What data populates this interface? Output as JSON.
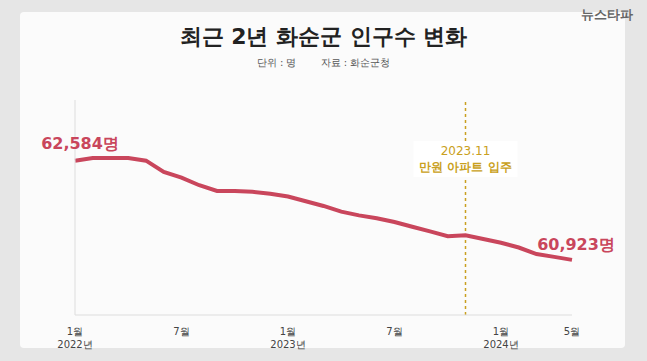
{
  "chart_data": {
    "type": "line",
    "title": "최근 2년 화순군 인구수 변화",
    "subtitle": "단위 : 명",
    "source": "자료 : 화순군청",
    "watermark": "뉴스타파",
    "categories": [
      "1월\n2022년",
      null,
      null,
      null,
      null,
      null,
      "7월",
      null,
      null,
      null,
      null,
      null,
      "1월\n2023년",
      null,
      null,
      null,
      null,
      null,
      "7월",
      null,
      null,
      null,
      null,
      null,
      "1월\n2024년",
      null,
      null,
      null,
      "5월"
    ],
    "values": [
      62584,
      62630,
      62630,
      62630,
      62584,
      62394,
      62300,
      62173,
      62078,
      62078,
      62062,
      62030,
      61984,
      61905,
      61826,
      61730,
      61668,
      61620,
      61557,
      61478,
      61400,
      61320,
      61336,
      61273,
      61210,
      61130,
      61020,
      60973,
      60923
    ],
    "value_labels": [
      "62,584명",
      null,
      null,
      null,
      null,
      null,
      null,
      null,
      null,
      null,
      null,
      null,
      null,
      null,
      null,
      null,
      null,
      null,
      null,
      null,
      null,
      null,
      null,
      null,
      null,
      null,
      null,
      null,
      "60,923명"
    ],
    "data_labels": true,
    "color": "#c9465c",
    "ylim": [
      60000,
      63600
    ],
    "tick_labels": "x",
    "grid": false,
    "reference_line": {
      "x": 22,
      "label": "2023.11",
      "text": "만원 아파트 입주",
      "color": "#c9a020"
    }
  }
}
